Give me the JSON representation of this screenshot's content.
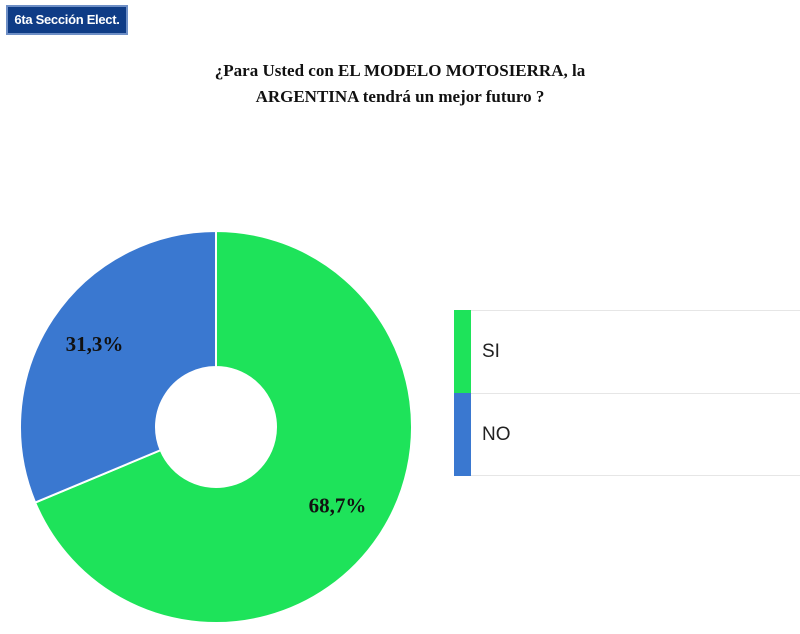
{
  "header": {
    "badge_label": "6ta Sección Elect."
  },
  "chart_data": {
    "type": "pie",
    "title_lines": [
      "¿Para Usted con EL MODELO MOTOSIERRA, la",
      "ARGENTINA tendrá un mejor futuro ?"
    ],
    "donut": true,
    "categories": [
      "SI",
      "NO"
    ],
    "values": [
      68.7,
      31.3
    ],
    "value_labels": [
      "68,7%",
      "31,3%"
    ],
    "colors": [
      "#1ee35a",
      "#3a78d0"
    ],
    "legend": "right"
  }
}
